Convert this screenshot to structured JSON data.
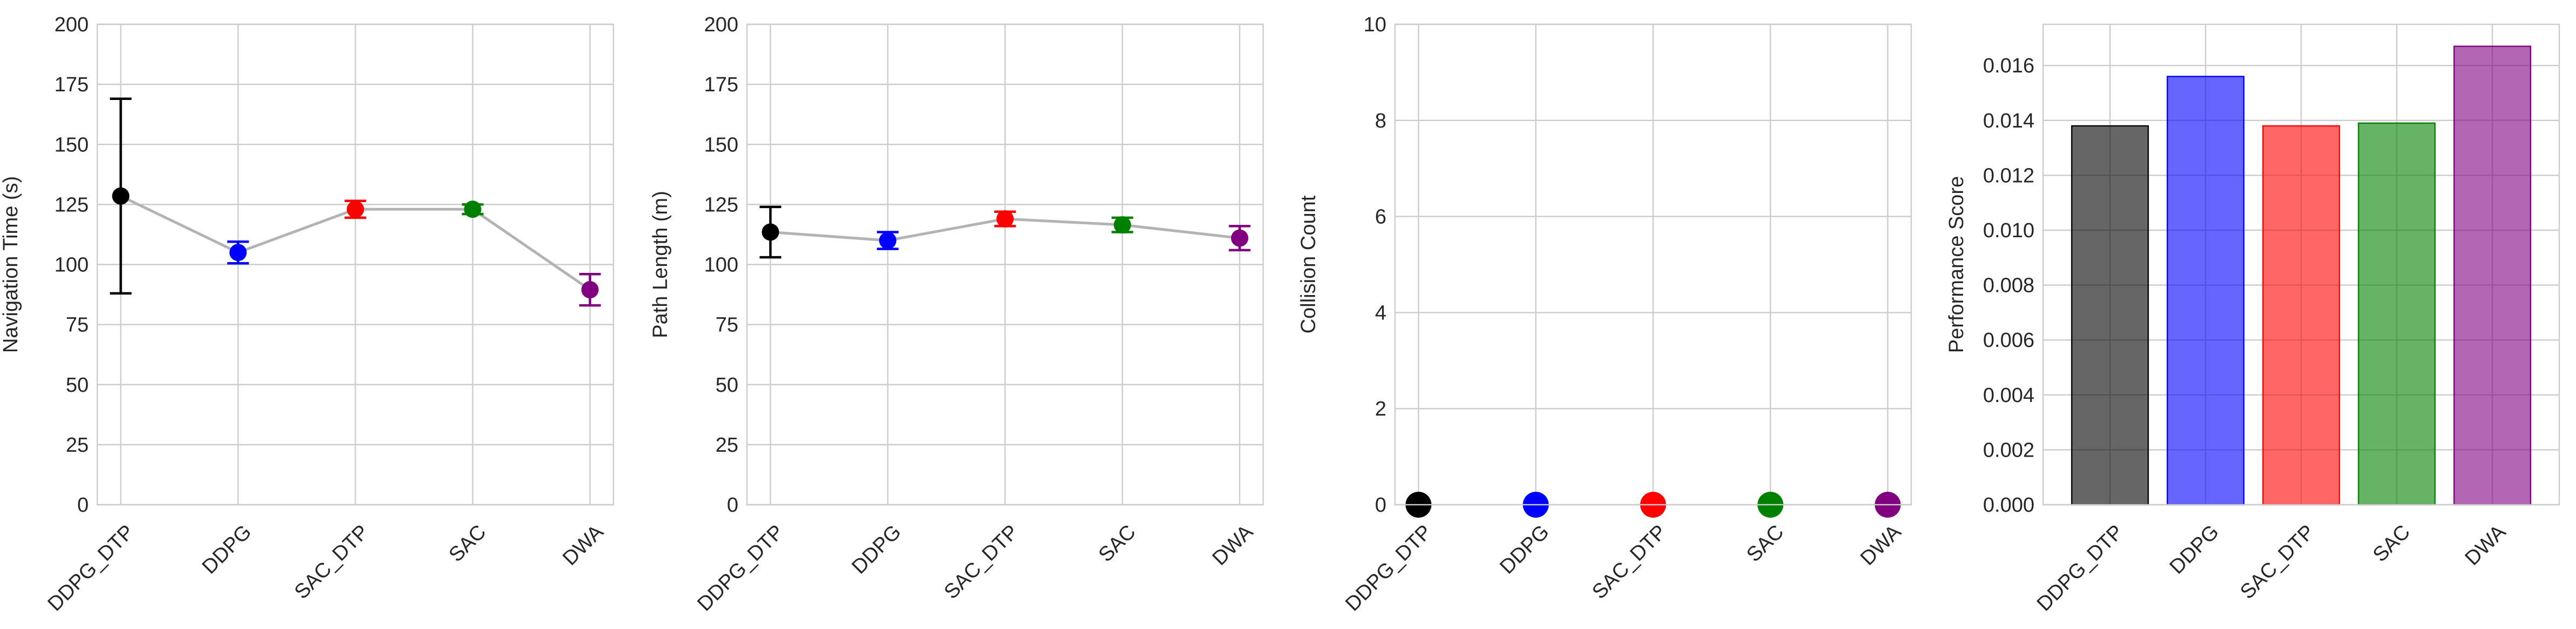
{
  "chart_data": [
    {
      "type": "line",
      "categories": [
        "DDPG_DTP",
        "DDPG",
        "SAC_DTP",
        "SAC",
        "DWA"
      ],
      "values": [
        128.5,
        105,
        123,
        123,
        89.5
      ],
      "errors": [
        40.5,
        4.5,
        3.5,
        2,
        6.5
      ],
      "colors": [
        "#000000",
        "#0000ff",
        "#ff0000",
        "#008000",
        "#800080"
      ],
      "ylabel": "Navigation Time (s)",
      "ylim": [
        0,
        200
      ],
      "yticks": [
        0,
        25,
        50,
        75,
        100,
        125,
        150,
        175,
        200
      ],
      "ytick_labels": [
        "0",
        "25",
        "50",
        "75",
        "100",
        "125",
        "150",
        "175",
        "200"
      ],
      "grid": true
    },
    {
      "type": "line",
      "categories": [
        "DDPG_DTP",
        "DDPG",
        "SAC_DTP",
        "SAC",
        "DWA"
      ],
      "values": [
        113.5,
        110,
        119,
        116.5,
        111
      ],
      "errors": [
        10.5,
        3.5,
        3,
        3,
        5
      ],
      "colors": [
        "#000000",
        "#0000ff",
        "#ff0000",
        "#008000",
        "#800080"
      ],
      "ylabel": "Path Length (m)",
      "ylim": [
        0,
        200
      ],
      "yticks": [
        0,
        25,
        50,
        75,
        100,
        125,
        150,
        175,
        200
      ],
      "ytick_labels": [
        "0",
        "25",
        "50",
        "75",
        "100",
        "125",
        "150",
        "175",
        "200"
      ],
      "grid": true
    },
    {
      "type": "scatter",
      "categories": [
        "DDPG_DTP",
        "DDPG",
        "SAC_DTP",
        "SAC",
        "DWA"
      ],
      "values": [
        0,
        0,
        0,
        0,
        0
      ],
      "colors": [
        "#000000",
        "#0000ff",
        "#ff0000",
        "#008000",
        "#800080"
      ],
      "ylabel": "Collision Count",
      "ylim": [
        0,
        10
      ],
      "yticks": [
        0,
        2,
        4,
        6,
        8,
        10
      ],
      "ytick_labels": [
        "0",
        "2",
        "4",
        "6",
        "8",
        "10"
      ],
      "grid": true
    },
    {
      "type": "bar",
      "categories": [
        "DDPG_DTP",
        "DDPG",
        "SAC_DTP",
        "SAC",
        "DWA"
      ],
      "values": [
        0.0138,
        0.0156,
        0.0138,
        0.0139,
        0.0167
      ],
      "colors": [
        "#000000",
        "#0000ff",
        "#ff0000",
        "#008000",
        "#800080"
      ],
      "ylabel": "Performance Score",
      "ylim": [
        0,
        0.0175
      ],
      "yticks": [
        0,
        0.002,
        0.004,
        0.006,
        0.008,
        0.01,
        0.012,
        0.014,
        0.016
      ],
      "ytick_labels": [
        "0.000",
        "0.002",
        "0.004",
        "0.006",
        "0.008",
        "0.010",
        "0.012",
        "0.014",
        "0.016"
      ],
      "grid": true
    }
  ]
}
